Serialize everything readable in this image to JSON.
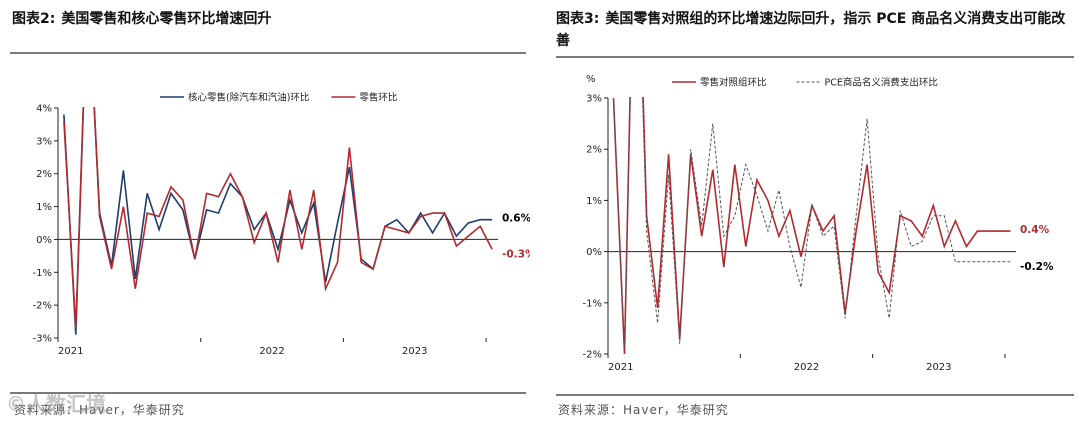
{
  "watermark": "©人数汇境",
  "left": {
    "fig_no": "图表2:",
    "title": "美国零售和核心零售环比增速回升",
    "source": "资料来源：Haver，华泰研究",
    "chart_data": {
      "type": "line",
      "title": "",
      "xlabel": "",
      "ylabel": "",
      "ylim": [
        -3,
        4
      ],
      "yticks": [
        "-3%",
        "-2%",
        "-1%",
        "0%",
        "1%",
        "2%",
        "3%",
        "4%"
      ],
      "xtick_labels": [
        "2021",
        "2022",
        "2023"
      ],
      "x": [
        "2021-01",
        "2021-02",
        "2021-03",
        "2021-04",
        "2021-05",
        "2021-06",
        "2021-07",
        "2021-08",
        "2021-09",
        "2021-10",
        "2021-11",
        "2021-12",
        "2022-01",
        "2022-02",
        "2022-03",
        "2022-04",
        "2022-05",
        "2022-06",
        "2022-07",
        "2022-08",
        "2022-09",
        "2022-10",
        "2022-11",
        "2022-12",
        "2023-01",
        "2023-02",
        "2023-03",
        "2023-04",
        "2023-05",
        "2023-06",
        "2023-07",
        "2023-08",
        "2023-09",
        "2023-10",
        "2023-11",
        "2023-12",
        "2024-01"
      ],
      "series": [
        {
          "name": "核心零售(除汽车和汽油)环比",
          "color": "#1f3d6e",
          "dash": false,
          "values": [
            3.8,
            -2.9,
            8.0,
            0.8,
            -0.8,
            2.1,
            -1.2,
            1.4,
            0.3,
            1.4,
            0.9,
            -0.6,
            0.9,
            0.8,
            1.7,
            1.3,
            0.3,
            0.8,
            -0.3,
            1.2,
            0.2,
            1.1,
            -1.3,
            0.5,
            2.2,
            -0.6,
            -0.9,
            0.4,
            0.6,
            0.2,
            0.8,
            0.2,
            0.8,
            0.1,
            0.5,
            0.6,
            0.6
          ]
        },
        {
          "name": "零售环比",
          "color": "#b22a2e",
          "dash": false,
          "values": [
            3.6,
            -2.7,
            8.0,
            0.7,
            -0.9,
            1.0,
            -1.5,
            0.8,
            0.7,
            1.6,
            1.2,
            -0.6,
            1.4,
            1.3,
            2.0,
            1.3,
            -0.1,
            0.8,
            -0.7,
            1.5,
            -0.3,
            1.5,
            -1.5,
            -0.7,
            2.8,
            -0.7,
            -0.9,
            0.4,
            0.3,
            0.2,
            0.7,
            0.8,
            0.8,
            -0.2,
            0.1,
            0.4,
            -0.3
          ]
        }
      ],
      "end_labels": [
        {
          "text": "0.6%",
          "color": "#000000",
          "value": 0.6
        },
        {
          "text": "-0.3%",
          "color": "#b22a2e",
          "value": -0.3
        }
      ],
      "legend_position": "top",
      "grid": false
    }
  },
  "right": {
    "fig_no": "图表3:",
    "title": "美国零售对照组的环比增速边际回升，指示 PCE 商品名义消费支出可能改善",
    "source": "资料来源：Haver，华泰研究",
    "chart_data": {
      "type": "line",
      "title": "",
      "xlabel": "",
      "ylabel": "%",
      "ylim": [
        -2,
        3
      ],
      "yticks": [
        "-2%",
        "-1%",
        "0%",
        "1%",
        "2%",
        "3%"
      ],
      "xtick_labels": [
        "2021",
        "2022",
        "2023"
      ],
      "x": [
        "2021-01",
        "2021-02",
        "2021-03",
        "2021-04",
        "2021-05",
        "2021-06",
        "2021-07",
        "2021-08",
        "2021-09",
        "2021-10",
        "2021-11",
        "2021-12",
        "2022-01",
        "2022-02",
        "2022-03",
        "2022-04",
        "2022-05",
        "2022-06",
        "2022-07",
        "2022-08",
        "2022-09",
        "2022-10",
        "2022-11",
        "2022-12",
        "2023-01",
        "2023-02",
        "2023-03",
        "2023-04",
        "2023-05",
        "2023-06",
        "2023-07",
        "2023-08",
        "2023-09",
        "2023-10",
        "2023-11",
        "2023-12",
        "2024-01"
      ],
      "series": [
        {
          "name": "零售对照组环比",
          "color": "#b22a2e",
          "dash": false,
          "values": [
            3.0,
            -2.0,
            8.0,
            0.7,
            -1.1,
            1.9,
            -1.7,
            1.9,
            0.3,
            1.6,
            -0.3,
            1.7,
            0.1,
            1.4,
            1.0,
            0.3,
            0.8,
            -0.1,
            0.9,
            0.4,
            0.7,
            -1.2,
            0.4,
            1.7,
            -0.4,
            -0.8,
            0.7,
            0.6,
            0.3,
            0.9,
            0.1,
            0.6,
            0.1,
            0.4,
            0.4,
            0.4,
            0.4
          ]
        },
        {
          "name": "PCE商品名义消费支出环比",
          "color": "#555555",
          "dash": true,
          "values": [
            3.0,
            -1.9,
            7.5,
            0.4,
            -1.4,
            1.5,
            -1.8,
            2.0,
            0.5,
            2.5,
            0.3,
            0.7,
            1.7,
            1.1,
            0.4,
            1.2,
            0.1,
            -0.7,
            0.9,
            0.3,
            0.5,
            -1.3,
            0.7,
            2.6,
            -0.1,
            -1.3,
            0.8,
            0.1,
            0.2,
            0.7,
            0.7,
            -0.2,
            -0.2,
            -0.2,
            -0.2,
            -0.2,
            -0.2
          ]
        }
      ],
      "end_labels": [
        {
          "text": "0.4%",
          "color": "#b22a2e",
          "value": 0.4
        },
        {
          "text": "-0.2%",
          "color": "#000000",
          "value": -0.2
        }
      ],
      "legend_position": "top",
      "grid": false
    }
  }
}
